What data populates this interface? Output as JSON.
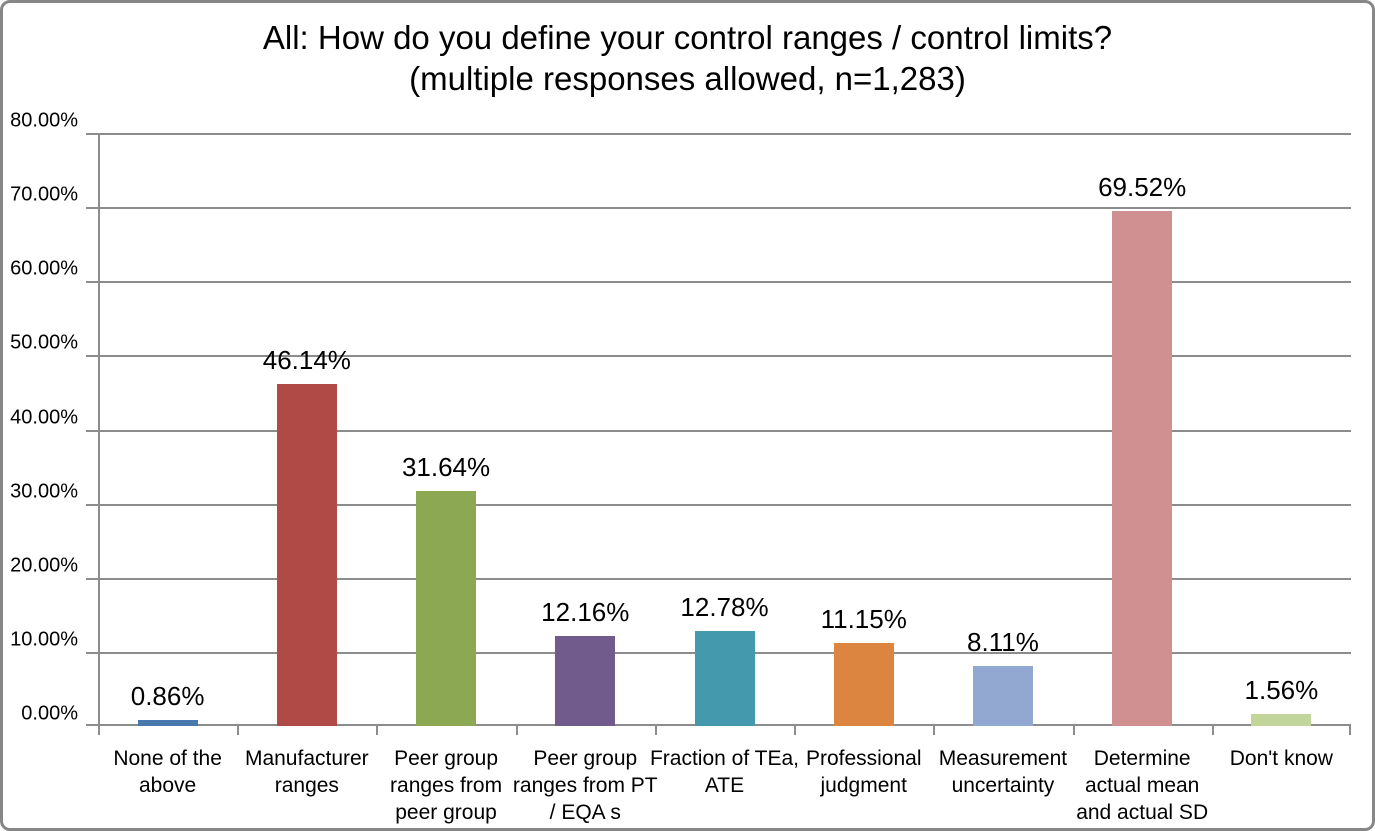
{
  "title": {
    "line1": "All: How do you define your control ranges / control limits?",
    "line2": "(multiple responses allowed, n=1,283)"
  },
  "chart_data": {
    "type": "bar",
    "title": "All: How do you define your control ranges / control limits? (multiple responses allowed, n=1,283)",
    "categories": [
      "None of the above",
      "Manufacturer ranges",
      "Peer group ranges from peer group",
      "Peer group ranges from PT / EQA s",
      "Fraction of TEa, ATE",
      "Professional judgment",
      "Measurement uncertainty",
      "Determine actual mean and actual SD",
      "Don't know"
    ],
    "category_display": [
      "None of the\nabove",
      "Manufacturer\nranges",
      "Peer group\nranges from\npeer group",
      "Peer group\nranges from PT\n/ EQA s",
      "Fraction of TEa,\nATE",
      "Professional\njudgment",
      "Measurement\nuncertainty",
      "Determine\nactual mean\nand actual SD",
      "Don't know"
    ],
    "values": [
      0.86,
      46.14,
      31.64,
      12.16,
      12.78,
      11.15,
      8.11,
      69.52,
      1.56
    ],
    "value_labels": [
      "0.86%",
      "46.14%",
      "31.64%",
      "12.16%",
      "12.78%",
      "11.15%",
      "8.11%",
      "69.52%",
      "1.56%"
    ],
    "bar_colors": [
      "#4878AE",
      "#B04A47",
      "#8CA853",
      "#715A8C",
      "#4499AD",
      "#DC8540",
      "#92A8D1",
      "#D08F91",
      "#C2D69B"
    ],
    "xlabel": "",
    "ylabel": "",
    "ylim": [
      0,
      80
    ],
    "y_tick_step": 10,
    "y_tick_labels": [
      "0.00%",
      "10.00%",
      "20.00%",
      "30.00%",
      "40.00%",
      "50.00%",
      "60.00%",
      "70.00%",
      "80.00%"
    ],
    "grid": true,
    "grid_color": "#8C8C8C",
    "legend": "none"
  }
}
